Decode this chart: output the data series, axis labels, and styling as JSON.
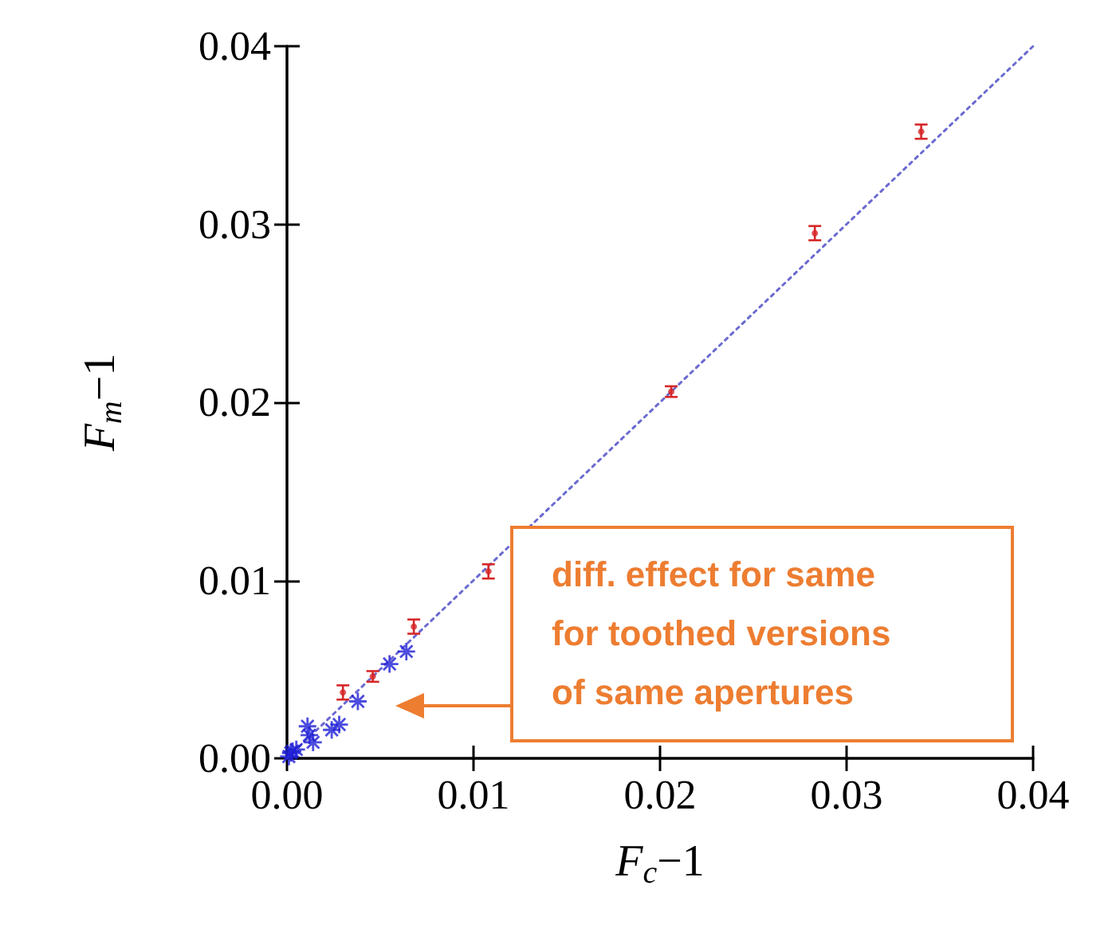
{
  "chart_data": {
    "type": "scatter",
    "xlabel": "F$_{c}$−1",
    "ylabel": "F$_{m}$−1",
    "xlim": [
      0,
      0.04
    ],
    "ylim": [
      0,
      0.04
    ],
    "xticks": [
      {
        "value": 0,
        "label": "0.00"
      },
      0.01,
      0.02,
      0.03,
      0.04
    ],
    "yticks": [
      {
        "value": 0,
        "label": "0.00"
      },
      0.01,
      0.02,
      0.03,
      0.04
    ],
    "grid": false,
    "annotations": [
      "diff. effect for same for toothed versions of same apertures"
    ],
    "series": [
      {
        "color": "#d62728",
        "marker": "circle",
        "x": [
          0.003,
          0.0046,
          0.0068,
          0.0108,
          0.0206,
          0.0283,
          0.034
        ],
        "values": [
          0.0037,
          0.0046,
          0.0074,
          0.0105,
          0.0206,
          0.0295,
          0.0352
        ],
        "errors": [
          0.0004,
          0.0003,
          0.0004,
          0.0004,
          0.0003,
          0.0004,
          0.0004
        ]
      },
      {
        "color": "#1f1fd6",
        "marker": "cross",
        "x": [
          0.0064,
          0.0055,
          0.0038,
          0.0028,
          0.0024,
          0.0011,
          0.0012,
          0.0014,
          0.0003,
          0.0002,
          0.0001,
          0.0005
        ],
        "values": [
          0.006,
          0.0053,
          0.0032,
          0.0019,
          0.0016,
          0.0018,
          0.0013,
          0.0009,
          0.0004,
          0.0003,
          0.0001,
          0.0005
        ]
      },
      {
        "type": "line",
        "color": "#6a6ad0",
        "line_style": "dotted",
        "marker": "none",
        "x": [
          0,
          0.04
        ],
        "values": [
          0,
          0.04
        ]
      }
    ]
  }
}
